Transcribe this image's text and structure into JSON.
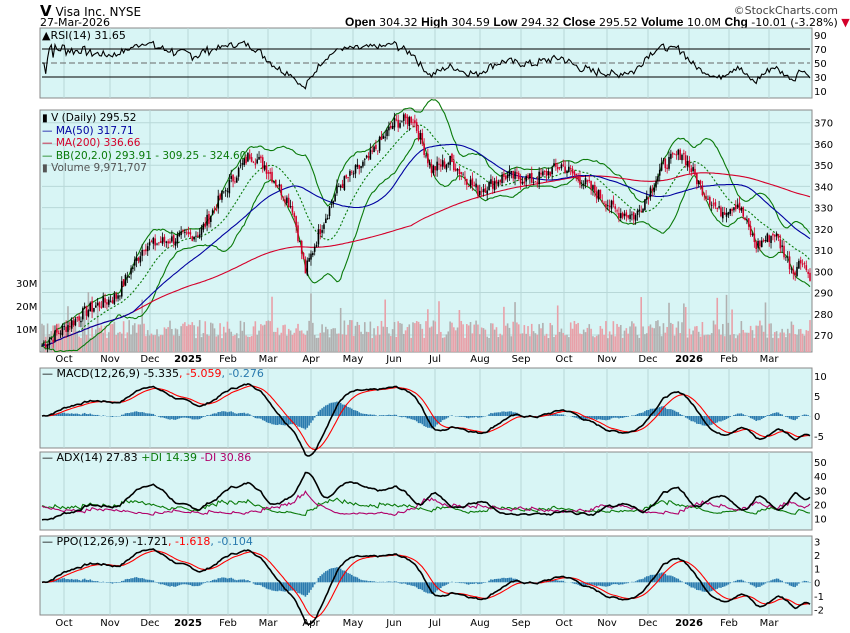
{
  "header": {
    "symbol": "V",
    "name": "Visa Inc.",
    "exchange": "NYSE",
    "date": "27-Mar-2026",
    "brand": "©StockCharts.com",
    "open_label": "Open",
    "open": "304.32",
    "high_label": "High",
    "high": "304.59",
    "low_label": "Low",
    "low": "294.32",
    "close_label": "Close",
    "close": "295.52",
    "volume_label": "Volume",
    "volume": "10.0M",
    "chg_label": "Chg",
    "chg": "-10.01 (-3.28%)"
  },
  "colors": {
    "bg": "#d8f5f5",
    "up": "#000000",
    "down": "#d4002a",
    "ma50": "#0000a0",
    "ma200": "#d4002a",
    "bb": "#0a7a0a",
    "vol": "#b0b0b0",
    "hist": "#2a7aae",
    "signal": "#ff0000"
  },
  "chart_data": {
    "type": "line",
    "title": "V (Daily) 295.52",
    "legend": {
      "price": "V (Daily) 295.52",
      "ma50": "MA(50) 317.71",
      "ma200": "MA(200) 336.66",
      "bb": "BB(20,2.0) 293.91 - 309.25 - 324.60",
      "volume": "Volume 9,971,707"
    },
    "price_anchor_points": [
      [
        0,
        265
      ],
      [
        10,
        272
      ],
      [
        25,
        282
      ],
      [
        40,
        288
      ],
      [
        55,
        312
      ],
      [
        70,
        315
      ],
      [
        85,
        318
      ],
      [
        100,
        340
      ],
      [
        112,
        355
      ],
      [
        120,
        350
      ],
      [
        135,
        330
      ],
      [
        142,
        300
      ],
      [
        150,
        320
      ],
      [
        160,
        340
      ],
      [
        175,
        352
      ],
      [
        190,
        370
      ],
      [
        200,
        372
      ],
      [
        210,
        348
      ],
      [
        220,
        352
      ],
      [
        235,
        338
      ],
      [
        250,
        345
      ],
      [
        265,
        343
      ],
      [
        280,
        350
      ],
      [
        295,
        340
      ],
      [
        310,
        328
      ],
      [
        320,
        326
      ],
      [
        335,
        350
      ],
      [
        345,
        356
      ],
      [
        355,
        340
      ],
      [
        365,
        328
      ],
      [
        375,
        332
      ],
      [
        385,
        312
      ],
      [
        395,
        318
      ],
      [
        405,
        300
      ],
      [
        410,
        306
      ],
      [
        414,
        296
      ]
    ],
    "price_axis": {
      "ticks": [
        370,
        360,
        350,
        340,
        330,
        320,
        310,
        300,
        290,
        280,
        270
      ],
      "range": [
        262,
        376
      ]
    },
    "volume_axis": {
      "ticks": [
        "30M",
        "20M",
        "10M"
      ]
    },
    "x_ticks": [
      "Oct",
      "Nov",
      "Dec",
      "2025",
      "Feb",
      "Mar",
      "Apr",
      "May",
      "Jun",
      "Jul",
      "Aug",
      "Sep",
      "Oct",
      "Nov",
      "Dec",
      "2026",
      "Feb",
      "Mar"
    ],
    "panels": {
      "rsi": {
        "label": "RSI(14) 31.65",
        "ticks": [
          "90",
          "70",
          "50",
          "30",
          "10"
        ]
      },
      "macd": {
        "label": "MACD(12,26,9) -5.335",
        "signal": ", -5.059",
        "hist": ", -0.276",
        "ticks": [
          "10",
          "5",
          "0",
          "-5"
        ]
      },
      "adx": {
        "label": "ADX(14) 27.83",
        "pdi": "+DI 14.39",
        "mdi": "-DI 30.86",
        "ticks": [
          "50",
          "40",
          "30",
          "20",
          "10"
        ]
      },
      "ppo": {
        "label": "PPO(12,26,9) -1.721",
        "signal": ", -1.618",
        "hist": ", -0.104",
        "ticks": [
          "3",
          "2",
          "1",
          "0",
          "-1",
          "-2"
        ]
      }
    }
  }
}
